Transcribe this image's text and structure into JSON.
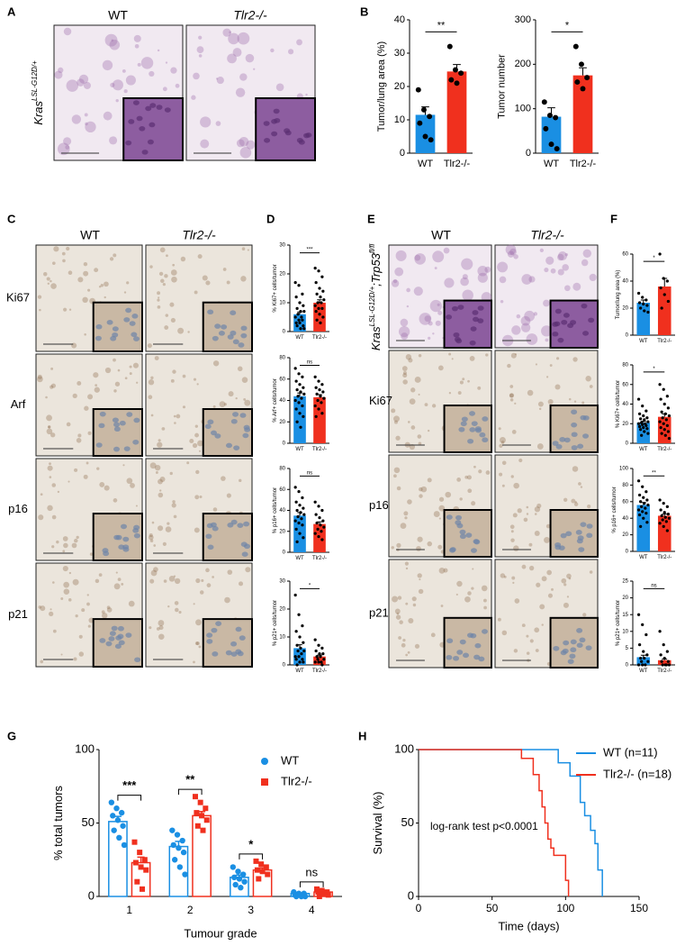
{
  "panel_labels": [
    "A",
    "B",
    "C",
    "D",
    "E",
    "F",
    "G",
    "H"
  ],
  "panel_A": {
    "columns": [
      "WT",
      "Tlr2-/-"
    ],
    "genotype": [
      "Kras",
      "LSL-G12D/+"
    ]
  },
  "panel_C": {
    "columns": [
      "WT",
      "Tlr2-/-"
    ],
    "rows": [
      "Ki67",
      "Arf",
      "p16",
      "p21"
    ]
  },
  "panel_E": {
    "columns": [
      "WT",
      "Tlr2-/-"
    ],
    "rows": [
      "Ki67",
      "p16",
      "p21"
    ],
    "genotype": [
      "Kras",
      "LSL-G12D/+",
      ";Trp53",
      "fl/fl"
    ]
  },
  "chart_data": [
    {
      "type": "bar",
      "ylabel": "Tumor/lung area (%)",
      "categories": [
        "WT",
        "Tlr2-/-"
      ],
      "colors": [
        "#1a8fe3",
        "#f0301e"
      ],
      "values": [
        11.5,
        24.5
      ],
      "errors": [
        2.4,
        2.1
      ],
      "points": [
        [
          19,
          13,
          11,
          9,
          5,
          4
        ],
        [
          32,
          25,
          24,
          22,
          21
        ]
      ],
      "ylim": [
        0,
        40
      ],
      "yticks": [
        0,
        10,
        20,
        30,
        40
      ],
      "significance": "**"
    },
    {
      "type": "bar",
      "ylabel": "Tumor number",
      "categories": [
        "WT",
        "Tlr2-/-"
      ],
      "colors": [
        "#1a8fe3",
        "#f0301e"
      ],
      "values": [
        82,
        175
      ],
      "errors": [
        20,
        17
      ],
      "points": [
        [
          115,
          85,
          80,
          55,
          20,
          10
        ],
        [
          240,
          200,
          170,
          160,
          145
        ]
      ],
      "ylim": [
        0,
        300
      ],
      "yticks": [
        0,
        100,
        200,
        300
      ],
      "significance": "*"
    },
    {
      "type": "bar",
      "ylabel": "% Ki67+ cells/tumor",
      "categories": [
        "WT",
        "Tlr2-/-"
      ],
      "colors": [
        "#1a8fe3",
        "#f0301e"
      ],
      "values": [
        6,
        10
      ],
      "errors": [
        0.8,
        1.0
      ],
      "points": [
        [
          17,
          16,
          13,
          12,
          10,
          9,
          8,
          7,
          7,
          6,
          5,
          5,
          4,
          4,
          3,
          3,
          2,
          2,
          1,
          1
        ],
        [
          22,
          21,
          19,
          17,
          15,
          14,
          13,
          12,
          11,
          10,
          10,
          9,
          8,
          8,
          7,
          6,
          5,
          4,
          3
        ]
      ],
      "ylim": [
        0,
        30
      ],
      "yticks": [
        0,
        10,
        20,
        30
      ],
      "significance": "***"
    },
    {
      "type": "bar",
      "ylabel": "% Arf+ cells/tumor",
      "categories": [
        "WT",
        "Tlr2-/-"
      ],
      "colors": [
        "#1a8fe3",
        "#f0301e"
      ],
      "values": [
        44,
        43
      ],
      "errors": [
        3,
        2.5
      ],
      "points": [
        [
          70,
          65,
          62,
          58,
          55,
          52,
          50,
          48,
          46,
          44,
          42,
          40,
          38,
          35,
          32,
          28,
          25,
          20,
          15
        ],
        [
          62,
          58,
          55,
          52,
          50,
          48,
          46,
          44,
          42,
          40,
          38,
          35,
          32,
          28,
          25
        ]
      ],
      "ylim": [
        0,
        80
      ],
      "yticks": [
        0,
        20,
        40,
        60,
        80
      ],
      "significance": "ns"
    },
    {
      "type": "bar",
      "ylabel": "% p16+ cells/tumor",
      "categories": [
        "WT",
        "Tlr2-/-"
      ],
      "colors": [
        "#1a8fe3",
        "#f0301e"
      ],
      "values": [
        35,
        27
      ],
      "errors": [
        3,
        2
      ],
      "points": [
        [
          62,
          58,
          52,
          48,
          45,
          42,
          40,
          38,
          36,
          34,
          32,
          30,
          28,
          26,
          22,
          18,
          14,
          10
        ],
        [
          48,
          44,
          40,
          36,
          33,
          30,
          28,
          26,
          24,
          22,
          20,
          18,
          15,
          12
        ]
      ],
      "ylim": [
        0,
        80
      ],
      "yticks": [
        0,
        20,
        40,
        60,
        80
      ],
      "significance": "ns"
    },
    {
      "type": "bar",
      "ylabel": "% p21+ cells/tumor",
      "categories": [
        "WT",
        "Tlr2-/-"
      ],
      "colors": [
        "#1a8fe3",
        "#f0301e"
      ],
      "values": [
        6,
        3
      ],
      "errors": [
        1.2,
        0.5
      ],
      "points": [
        [
          25,
          18,
          14,
          12,
          10,
          8,
          7,
          6,
          5,
          5,
          4,
          3,
          3,
          2,
          2,
          1,
          1,
          0
        ],
        [
          9,
          7,
          6,
          5,
          4,
          4,
          3,
          3,
          2,
          2,
          1,
          1,
          1,
          0
        ]
      ],
      "ylim": [
        0,
        30
      ],
      "yticks": [
        0,
        10,
        20,
        30
      ],
      "significance": "*"
    },
    {
      "type": "bar",
      "ylabel": "Tumor/lung area (%)",
      "categories": [
        "WT",
        "Tlr2-/-"
      ],
      "colors": [
        "#1a8fe3",
        "#f0301e"
      ],
      "values": [
        24,
        36
      ],
      "errors": [
        2,
        6
      ],
      "points": [
        [
          31,
          28,
          26,
          24,
          23,
          22,
          20,
          18,
          17
        ],
        [
          60,
          42,
          40,
          35,
          30,
          25,
          20
        ]
      ],
      "ylim": [
        0,
        60
      ],
      "yticks": [
        0,
        20,
        40,
        60
      ],
      "significance": "*"
    },
    {
      "type": "bar",
      "ylabel": "% Ki67+ cells/tumor",
      "categories": [
        "WT",
        "Tlr2-/-"
      ],
      "colors": [
        "#1a8fe3",
        "#f0301e"
      ],
      "values": [
        21,
        27
      ],
      "errors": [
        1.5,
        3
      ],
      "points": [
        [
          45,
          38,
          33,
          30,
          28,
          26,
          25,
          24,
          22,
          21,
          20,
          20,
          19,
          18,
          17,
          16,
          15,
          14,
          12,
          10,
          8
        ],
        [
          60,
          55,
          48,
          45,
          40,
          36,
          32,
          30,
          28,
          26,
          24,
          22,
          20,
          18,
          16,
          14,
          12,
          10,
          8,
          5
        ]
      ],
      "ylim": [
        0,
        80
      ],
      "yticks": [
        0,
        20,
        40,
        60,
        80
      ],
      "significance": "*"
    },
    {
      "type": "bar",
      "ylabel": "% p16+ cells/tumor",
      "categories": [
        "WT",
        "Tlr2-/-"
      ],
      "colors": [
        "#1a8fe3",
        "#f0301e"
      ],
      "values": [
        56,
        43
      ],
      "errors": [
        3,
        2
      ],
      "points": [
        [
          85,
          78,
          72,
          68,
          65,
          62,
          60,
          58,
          56,
          54,
          52,
          50,
          48,
          46,
          44,
          40,
          35,
          30
        ],
        [
          62,
          58,
          54,
          50,
          47,
          45,
          43,
          41,
          40,
          38,
          36,
          34,
          30,
          25
        ]
      ],
      "ylim": [
        0,
        100
      ],
      "yticks": [
        0,
        20,
        40,
        60,
        80,
        100
      ],
      "significance": "**"
    },
    {
      "type": "bar",
      "ylabel": "% p21+ cells/tumor",
      "categories": [
        "WT",
        "Tlr2-/-"
      ],
      "colors": [
        "#1a8fe3",
        "#f0301e"
      ],
      "values": [
        2.3,
        1.4
      ],
      "errors": [
        0.6,
        0.3
      ],
      "points": [
        [
          15,
          12,
          9,
          6,
          4,
          3,
          2,
          2,
          1,
          1,
          0,
          0,
          0
        ],
        [
          10,
          6,
          4,
          3,
          2,
          1,
          1,
          0,
          0,
          0,
          0
        ]
      ],
      "ylim": [
        0,
        25
      ],
      "yticks": [
        0,
        5,
        10,
        15,
        20,
        25
      ],
      "significance": "ns"
    },
    {
      "type": "grouped_bar",
      "ylabel": "% total tumors",
      "xlabel": "Tumour grade",
      "categories": [
        "1",
        "2",
        "3",
        "4"
      ],
      "ylim": [
        0,
        100
      ],
      "yticks": [
        0,
        50,
        100
      ],
      "significance": [
        "***",
        "**",
        "*",
        "ns"
      ],
      "series": [
        {
          "name": "WT",
          "color": "#1a8fe3",
          "marker": "circle",
          "values": [
            51,
            34,
            13,
            2
          ],
          "errors": [
            3.5,
            3.5,
            1.6,
            0.4
          ],
          "points": [
            [
              64,
              60,
              57,
              55,
              52,
              48,
              45,
              40,
              35
            ],
            [
              45,
              42,
              38,
              35,
              33,
              30,
              25,
              20,
              15
            ],
            [
              20,
              17,
              15,
              13,
              12,
              10,
              8,
              6
            ],
            [
              3,
              2,
              2,
              1,
              1,
              0,
              0,
              0
            ]
          ]
        },
        {
          "name": "Tlr2-/-",
          "color": "#f0301e",
          "marker": "square",
          "values": [
            23,
            55,
            18,
            3
          ],
          "errors": [
            3.8,
            2.8,
            1.5,
            0.6
          ],
          "points": [
            [
              37,
              30,
              25,
              23,
              20,
              18,
              10,
              5
            ],
            [
              68,
              64,
              60,
              57,
              55,
              52,
              48,
              45
            ],
            [
              24,
              22,
              20,
              18,
              17,
              15,
              12
            ],
            [
              5,
              4,
              3,
              3,
              2,
              1,
              0
            ]
          ]
        }
      ]
    },
    {
      "type": "survival",
      "ylabel": "Survival (%)",
      "xlabel": "Time (days)",
      "annotation": "log-rank test p<0.0001",
      "xlim": [
        0,
        150
      ],
      "xticks": [
        0,
        50,
        100,
        150
      ],
      "ylim": [
        0,
        100
      ],
      "yticks": [
        0,
        50,
        100
      ],
      "series": [
        {
          "name": "WT (n=11)",
          "color": "#1a8fe3",
          "x": [
            0,
            95,
            103,
            110,
            113,
            117,
            120,
            122,
            125
          ],
          "y": [
            100,
            91,
            82,
            64,
            55,
            45,
            36,
            18,
            0
          ]
        },
        {
          "name": "Tlr2-/- (n=18)",
          "color": "#f0301e",
          "x": [
            0,
            70,
            78,
            82,
            84,
            86,
            88,
            90,
            92,
            100,
            102
          ],
          "y": [
            100,
            94,
            83,
            72,
            61,
            50,
            39,
            33,
            28,
            11,
            0
          ]
        }
      ]
    }
  ]
}
